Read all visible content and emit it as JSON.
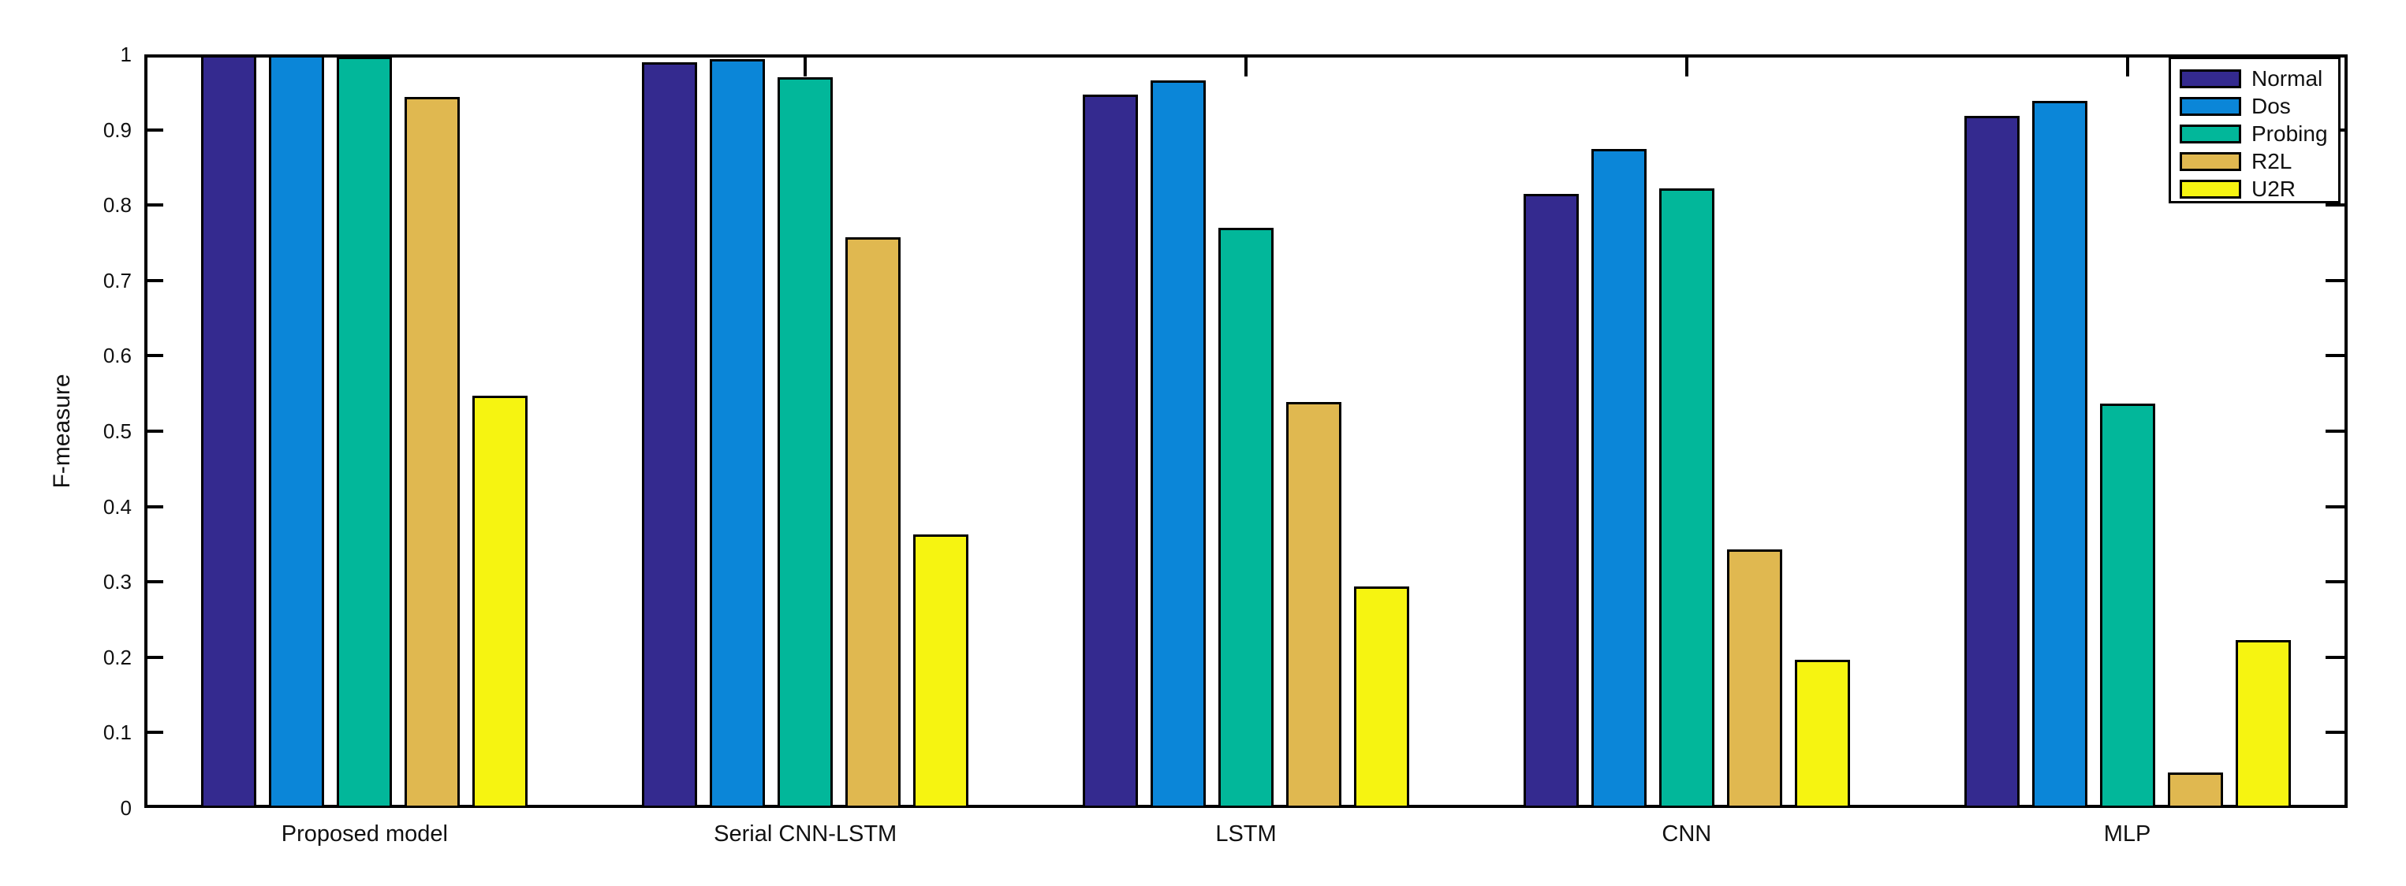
{
  "figure": {
    "background": "#ffffff"
  },
  "chart_data": {
    "type": "bar",
    "title": "",
    "xlabel": "",
    "ylabel": "F-measure",
    "ylim": [
      0,
      1
    ],
    "grid": false,
    "legend_position": "top-right",
    "edge_color": "#000000",
    "ytick_labels": [
      "0",
      "0.1",
      "0.2",
      "0.3",
      "0.4",
      "0.5",
      "0.6",
      "0.7",
      "0.8",
      "0.9",
      "1"
    ],
    "ytick_values": [
      0,
      0.1,
      0.2,
      0.3,
      0.4,
      0.5,
      0.6,
      0.7,
      0.8,
      0.9,
      1
    ],
    "categories": [
      "Proposed model",
      "Serial CNN-LSTM",
      "LSTM",
      "CNN",
      "MLP"
    ],
    "series": [
      {
        "name": "Normal",
        "color": "#342A8F",
        "values": [
          0.999,
          0.99,
          0.947,
          0.815,
          0.918
        ]
      },
      {
        "name": "Dos",
        "color": "#0B86D8",
        "values": [
          0.999,
          0.994,
          0.966,
          0.875,
          0.938
        ]
      },
      {
        "name": "Probing",
        "color": "#02B79A",
        "values": [
          0.997,
          0.97,
          0.77,
          0.822,
          0.537
        ]
      },
      {
        "name": "R2L",
        "color": "#E0B850",
        "values": [
          0.944,
          0.757,
          0.539,
          0.343,
          0.047
        ]
      },
      {
        "name": "U2R",
        "color": "#F6F411",
        "values": [
          0.547,
          0.363,
          0.294,
          0.197,
          0.223
        ]
      }
    ]
  }
}
